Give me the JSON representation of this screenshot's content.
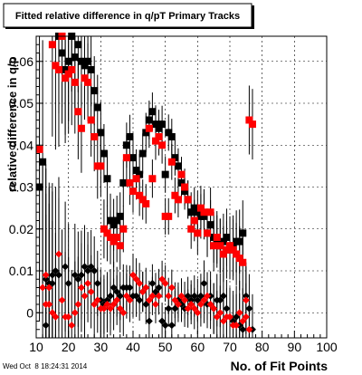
{
  "chart_data": {
    "type": "scatter",
    "title": "Fitted relative difference in q/pT Primary Tracks",
    "xlabel": "No. of Fit Points",
    "ylabel": "relative difference in q/p",
    "timestamp": "Wed Oct  8 18:24:31 2014",
    "xlim": [
      10,
      100
    ],
    "ylim": [
      -0.006,
      0.066
    ],
    "x_ticks": [
      10,
      20,
      30,
      40,
      50,
      60,
      70,
      80,
      90,
      100
    ],
    "y_ticks": [
      0,
      0.01,
      0.02,
      0.03,
      0.04,
      0.05,
      0.06
    ],
    "y_tick_labels": [
      "0",
      "0.01",
      "0.02",
      "0.03",
      "0.04",
      "0.05",
      "0.06"
    ],
    "grid": true,
    "colors": {
      "series1": "#000000",
      "series2": "#ff0000",
      "errorbar": "#000000"
    },
    "series": [
      {
        "color": "#000000",
        "points": [
          [
            11,
            0.03
          ],
          [
            12,
            0.036
          ],
          [
            13,
            0.008
          ],
          [
            14,
            0.007
          ],
          [
            15,
            0.009
          ],
          [
            16,
            0.01
          ],
          [
            17,
            0.066
          ],
          [
            18,
            0.062
          ],
          [
            19,
            0.058
          ],
          [
            20,
            0.06
          ],
          [
            21,
            0.066
          ],
          [
            22,
            0.061
          ],
          [
            23,
            0.064
          ],
          [
            24,
            0.06
          ],
          [
            25,
            0.059
          ],
          [
            26,
            0.06
          ],
          [
            27,
            0.058
          ],
          [
            28,
            0.053
          ],
          [
            29,
            0.049
          ],
          [
            30,
            0.043
          ],
          [
            31,
            0.038
          ],
          [
            32,
            0.032
          ],
          [
            33,
            0.022
          ],
          [
            34,
            0.021
          ],
          [
            35,
            0.022
          ],
          [
            36,
            0.023
          ],
          [
            37,
            0.031
          ],
          [
            38,
            0.04
          ],
          [
            39,
            0.042
          ],
          [
            40,
            0.037
          ],
          [
            41,
            0.034
          ],
          [
            42,
            0.033
          ],
          [
            43,
            0.038
          ],
          [
            44,
            0.043
          ],
          [
            45,
            0.046
          ],
          [
            46,
            0.048
          ],
          [
            47,
            0.045
          ],
          [
            48,
            0.044
          ],
          [
            49,
            0.045
          ],
          [
            50,
            0.033
          ],
          [
            51,
            0.043
          ],
          [
            52,
            0.042
          ],
          [
            53,
            0.037
          ],
          [
            54,
            0.035
          ],
          [
            55,
            0.031
          ],
          [
            56,
            0.029
          ],
          [
            57,
            0.027
          ],
          [
            58,
            0.024
          ],
          [
            59,
            0.025
          ],
          [
            60,
            0.024
          ],
          [
            61,
            0.023
          ],
          [
            62,
            0.023
          ],
          [
            63,
            0.019
          ],
          [
            64,
            0.021
          ],
          [
            65,
            0.018
          ],
          [
            66,
            0.017
          ],
          [
            67,
            0.016
          ],
          [
            68,
            0.017
          ],
          [
            69,
            0.018
          ],
          [
            70,
            0.015
          ],
          [
            71,
            0.016
          ],
          [
            72,
            0.017
          ],
          [
            73,
            0.017
          ],
          [
            74,
            0.019
          ],
          [
            13,
            -0.003
          ],
          [
            15,
            0.007
          ],
          [
            17,
            0.009
          ],
          [
            19,
            0.011
          ],
          [
            20,
            0.007
          ],
          [
            22,
            0.009
          ],
          [
            23,
            0.008
          ],
          [
            24,
            0.009
          ],
          [
            25,
            0.011
          ],
          [
            26,
            0.01
          ],
          [
            27,
            0.011
          ],
          [
            28,
            0.01
          ],
          [
            29,
            0.007
          ],
          [
            30,
            0.003
          ],
          [
            31,
            0.002
          ],
          [
            32,
            0.003
          ],
          [
            33,
            0.004
          ],
          [
            34,
            0.006
          ],
          [
            35,
            0.005
          ],
          [
            36,
            0.004
          ],
          [
            37,
            0.006
          ],
          [
            38,
            0.006
          ],
          [
            39,
            0.006
          ],
          [
            40,
            0.004
          ],
          [
            41,
            0.004
          ],
          [
            42,
            0.003
          ],
          [
            43,
            0.005
          ],
          [
            44,
            0.002
          ],
          [
            45,
            -0.002
          ],
          [
            46,
            0.007
          ],
          [
            47,
            0.005
          ],
          [
            48,
            0.006
          ],
          [
            49,
            -0.002
          ],
          [
            50,
            -0.003
          ],
          [
            51,
            0.001
          ],
          [
            52,
            -0.003
          ],
          [
            53,
            0.001
          ],
          [
            54,
            0.003
          ],
          [
            55,
            0.002
          ],
          [
            56,
            0.001
          ],
          [
            57,
            0.004
          ],
          [
            58,
            0.003
          ],
          [
            59,
            0.004
          ],
          [
            60,
            0.003
          ],
          [
            61,
            0.004
          ],
          [
            62,
            0.007
          ],
          [
            63,
            0.002
          ],
          [
            64,
            0.004
          ],
          [
            65,
            0.001
          ],
          [
            66,
            0.003
          ],
          [
            67,
            0.003
          ],
          [
            68,
            0.004
          ],
          [
            69,
            0.001
          ],
          [
            70,
            -0.001
          ],
          [
            71,
            -0.002
          ],
          [
            72,
            -0.001
          ],
          [
            73,
            -0.003
          ],
          [
            74,
            -0.004
          ],
          [
            75,
            0.004
          ],
          [
            76,
            0.001
          ],
          [
            77,
            -0.004
          ]
        ]
      },
      {
        "color": "#ff0000",
        "points": [
          [
            11,
            0.039
          ],
          [
            13,
            0.009
          ],
          [
            14,
            0.006
          ],
          [
            15,
            0.064
          ],
          [
            16,
            0.059
          ],
          [
            17,
            0.058
          ],
          [
            18,
            0.066
          ],
          [
            19,
            0.056
          ],
          [
            20,
            0.057
          ],
          [
            21,
            0.058
          ],
          [
            22,
            0.055
          ],
          [
            23,
            0.048
          ],
          [
            24,
            0.044
          ],
          [
            25,
            0.056
          ],
          [
            26,
            0.055
          ],
          [
            27,
            0.046
          ],
          [
            28,
            0.042
          ],
          [
            29,
            0.035
          ],
          [
            30,
            0.035
          ],
          [
            31,
            0.02
          ],
          [
            32,
            0.019
          ],
          [
            33,
            0.018
          ],
          [
            34,
            0.017
          ],
          [
            35,
            0.018
          ],
          [
            36,
            0.016
          ],
          [
            37,
            0.02
          ],
          [
            38,
            0.037
          ],
          [
            39,
            0.031
          ],
          [
            40,
            0.029
          ],
          [
            41,
            0.032
          ],
          [
            42,
            0.028
          ],
          [
            43,
            0.027
          ],
          [
            44,
            0.026
          ],
          [
            45,
            0.044
          ],
          [
            46,
            0.032
          ],
          [
            47,
            0.041
          ],
          [
            48,
            0.042
          ],
          [
            49,
            0.04
          ],
          [
            50,
            0.023
          ],
          [
            51,
            0.023
          ],
          [
            52,
            0.036
          ],
          [
            53,
            0.028
          ],
          [
            54,
            0.027
          ],
          [
            55,
            0.033
          ],
          [
            56,
            0.03
          ],
          [
            57,
            0.027
          ],
          [
            58,
            0.02
          ],
          [
            59,
            0.022
          ],
          [
            60,
            0.019
          ],
          [
            61,
            0.025
          ],
          [
            62,
            0.024
          ],
          [
            63,
            0.019
          ],
          [
            64,
            0.024
          ],
          [
            65,
            0.016
          ],
          [
            66,
            0.018
          ],
          [
            67,
            0.016
          ],
          [
            68,
            0.014
          ],
          [
            69,
            0.015
          ],
          [
            70,
            0.016
          ],
          [
            71,
            0.015
          ],
          [
            72,
            0.014
          ],
          [
            73,
            0.013
          ],
          [
            74,
            0.012
          ],
          [
            75,
            0.003
          ],
          [
            76,
            0.046
          ],
          [
            77,
            0.045
          ],
          [
            12,
            0.006
          ],
          [
            13,
            0.002
          ],
          [
            14,
            0.002
          ],
          [
            15,
            0.0
          ],
          [
            16,
            -0.001
          ],
          [
            17,
            0.014
          ],
          [
            18,
            0.003
          ],
          [
            19,
            -0.001
          ],
          [
            20,
            -0.001
          ],
          [
            21,
            -0.003
          ],
          [
            22,
            0.0
          ],
          [
            23,
            0.002
          ],
          [
            24,
            0.006
          ],
          [
            25,
            0.004
          ],
          [
            26,
            0.007
          ],
          [
            27,
            0.005
          ],
          [
            28,
            0.002
          ],
          [
            29,
            0.003
          ],
          [
            30,
            0.001
          ],
          [
            31,
            0.001
          ],
          [
            32,
            0.002
          ],
          [
            33,
            0.001
          ],
          [
            34,
            0.002
          ],
          [
            35,
            0.003
          ],
          [
            36,
            0.001
          ],
          [
            37,
            0.0
          ],
          [
            38,
            0.004
          ],
          [
            39,
            0.003
          ],
          [
            40,
            0.009
          ],
          [
            41,
            0.008
          ],
          [
            42,
            0.007
          ],
          [
            43,
            0.005
          ],
          [
            44,
            0.006
          ],
          [
            45,
            0.003
          ],
          [
            46,
            0.004
          ],
          [
            47,
            0.002
          ],
          [
            48,
            0.004
          ],
          [
            49,
            0.008
          ],
          [
            50,
            0.007
          ],
          [
            51,
            0.004
          ],
          [
            52,
            0.006
          ],
          [
            53,
            0.003
          ],
          [
            54,
            0.002
          ],
          [
            55,
            0.004
          ],
          [
            56,
            0.003
          ],
          [
            57,
            0.001
          ],
          [
            58,
            0.002
          ],
          [
            59,
            0.001
          ],
          [
            60,
            0.0
          ],
          [
            61,
            0.002
          ],
          [
            62,
            0.003
          ],
          [
            63,
            0.004
          ],
          [
            64,
            0.002
          ],
          [
            65,
            0.001
          ],
          [
            66,
            -0.001
          ],
          [
            67,
            0.0
          ],
          [
            68,
            -0.002
          ],
          [
            69,
            -0.001
          ],
          [
            70,
            -0.001
          ],
          [
            71,
            -0.003
          ],
          [
            72,
            -0.003
          ],
          [
            73,
            0.0
          ],
          [
            74,
            -0.002
          ],
          [
            75,
            -0.001
          ],
          [
            76,
            -0.004
          ]
        ]
      }
    ]
  }
}
